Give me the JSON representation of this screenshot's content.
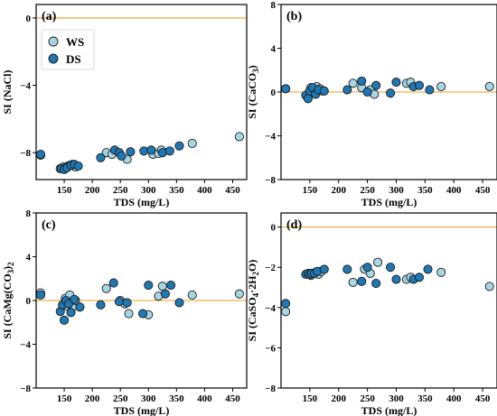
{
  "colors": {
    "WS": "#a9d6e5",
    "DS": "#1f78b4",
    "reference_line": "#f0b24a"
  },
  "chart_data": [
    {
      "type": "scatter",
      "panel": "(a)",
      "xlabel": "TDS (mg/L)",
      "ylabel": "SI (NaCl)",
      "xlim": [
        100,
        475
      ],
      "ylim": [
        -9.6,
        0.8
      ],
      "xticks": [
        150,
        200,
        250,
        300,
        350,
        400,
        450
      ],
      "yticks": [
        0,
        -4,
        -8
      ],
      "reference_line": 0,
      "legend": {
        "position": "top-left",
        "entries": [
          "WS",
          "DS"
        ]
      },
      "series": [
        {
          "name": "WS",
          "points": [
            [
              108,
              -8.15
            ],
            [
              143,
              -8.95
            ],
            [
              148,
              -8.85
            ],
            [
              152,
              -8.9
            ],
            [
              157,
              -8.8
            ],
            [
              160,
              -8.75
            ],
            [
              165,
              -8.7
            ],
            [
              170,
              -8.85
            ],
            [
              225,
              -8.0
            ],
            [
              235,
              -8.1
            ],
            [
              262,
              -8.4
            ],
            [
              308,
              -8.1
            ],
            [
              318,
              -8.05
            ],
            [
              323,
              -7.85
            ],
            [
              378,
              -7.45
            ],
            [
              462,
              -7.05
            ]
          ]
        },
        {
          "name": "DS",
          "points": [
            [
              108,
              -8.1
            ],
            [
              145,
              -8.95
            ],
            [
              150,
              -9.0
            ],
            [
              155,
              -8.9
            ],
            [
              162,
              -8.75
            ],
            [
              168,
              -8.7
            ],
            [
              175,
              -8.8
            ],
            [
              215,
              -8.3
            ],
            [
              240,
              -7.85
            ],
            [
              248,
              -8.0
            ],
            [
              252,
              -8.2
            ],
            [
              268,
              -7.95
            ],
            [
              292,
              -7.9
            ],
            [
              305,
              -7.85
            ],
            [
              325,
              -8.0
            ],
            [
              338,
              -7.9
            ],
            [
              355,
              -7.6
            ]
          ]
        }
      ]
    },
    {
      "type": "scatter",
      "panel": "(b)",
      "xlabel": "TDS (mg/L)",
      "ylabel": "SI (CaCO3)",
      "ylabel_main": "SI (CaCO",
      "ylabel_sub": "3",
      "ylabel_tail": ")",
      "xlim": [
        100,
        475
      ],
      "ylim": [
        -8,
        8
      ],
      "xticks": [
        150,
        200,
        250,
        300,
        350,
        400,
        450
      ],
      "yticks": [
        8,
        4,
        0,
        -4,
        -8
      ],
      "reference_line": 0,
      "series": [
        {
          "name": "WS",
          "points": [
            [
              108,
              0.3
            ],
            [
              148,
              -0.1
            ],
            [
              152,
              0.4
            ],
            [
              155,
              0.2
            ],
            [
              158,
              0.0
            ],
            [
              162,
              0.5
            ],
            [
              168,
              0.3
            ],
            [
              172,
              0.1
            ],
            [
              225,
              0.8
            ],
            [
              240,
              0.4
            ],
            [
              255,
              0.2
            ],
            [
              262,
              -0.2
            ],
            [
              318,
              0.8
            ],
            [
              325,
              0.9
            ],
            [
              378,
              0.5
            ],
            [
              462,
              0.5
            ]
          ]
        },
        {
          "name": "DS",
          "points": [
            [
              108,
              0.3
            ],
            [
              143,
              -0.3
            ],
            [
              147,
              -0.6
            ],
            [
              150,
              0.1
            ],
            [
              155,
              0.4
            ],
            [
              160,
              -0.2
            ],
            [
              165,
              0.2
            ],
            [
              175,
              0.1
            ],
            [
              215,
              0.2
            ],
            [
              240,
              1.0
            ],
            [
              250,
              0.0
            ],
            [
              265,
              0.6
            ],
            [
              290,
              -0.1
            ],
            [
              300,
              0.9
            ],
            [
              330,
              0.5
            ],
            [
              340,
              0.6
            ],
            [
              358,
              0.2
            ]
          ]
        }
      ]
    },
    {
      "type": "scatter",
      "panel": "(c)",
      "xlabel": "TDS (mg/L)",
      "ylabel": "SI (CaMg(CO3)2)",
      "ylabel_main": "SI (CaMg(CO",
      "ylabel_sub": "3",
      "ylabel_tail": ")",
      "ylabel_sub2": "2",
      "xlim": [
        100,
        475
      ],
      "ylim": [
        -8,
        8
      ],
      "xticks": [
        150,
        200,
        250,
        300,
        350,
        400,
        450
      ],
      "yticks": [
        8,
        4,
        0,
        -4,
        -8
      ],
      "reference_line": 0,
      "series": [
        {
          "name": "WS",
          "points": [
            [
              108,
              0.7
            ],
            [
              148,
              -0.4
            ],
            [
              152,
              0.2
            ],
            [
              155,
              -0.5
            ],
            [
              158,
              0.1
            ],
            [
              160,
              0.5
            ],
            [
              165,
              -0.6
            ],
            [
              170,
              0.0
            ],
            [
              225,
              1.1
            ],
            [
              250,
              0.0
            ],
            [
              258,
              -0.3
            ],
            [
              265,
              -1.2
            ],
            [
              300,
              -1.3
            ],
            [
              318,
              0.4
            ],
            [
              325,
              1.3
            ],
            [
              378,
              0.5
            ],
            [
              462,
              0.6
            ]
          ]
        },
        {
          "name": "DS",
          "points": [
            [
              108,
              0.5
            ],
            [
              143,
              -1.0
            ],
            [
              147,
              -0.4
            ],
            [
              150,
              -1.8
            ],
            [
              153,
              0.0
            ],
            [
              158,
              -0.3
            ],
            [
              162,
              -1.1
            ],
            [
              168,
              0.1
            ],
            [
              178,
              -0.6
            ],
            [
              215,
              -0.4
            ],
            [
              238,
              1.6
            ],
            [
              248,
              -0.1
            ],
            [
              262,
              -0.2
            ],
            [
              290,
              -1.2
            ],
            [
              300,
              1.4
            ],
            [
              330,
              0.6
            ],
            [
              340,
              1.4
            ],
            [
              355,
              -0.2
            ]
          ]
        }
      ]
    },
    {
      "type": "scatter",
      "panel": "(d)",
      "xlabel": "TDS (mg/L)",
      "ylabel": "SI (CaSO4·2H2O)",
      "ylabel_main": "SI (CaSO",
      "ylabel_sub": "4",
      "ylabel_tail": "·2H",
      "ylabel_sub2": "2",
      "ylabel_end": "O)",
      "xlim": [
        100,
        475
      ],
      "ylim": [
        -8,
        0.7
      ],
      "xticks": [
        150,
        200,
        250,
        300,
        350,
        400,
        450
      ],
      "yticks": [
        0,
        -2,
        -4,
        -6,
        -8
      ],
      "reference_line": 0,
      "series": [
        {
          "name": "WS",
          "points": [
            [
              108,
              -4.2
            ],
            [
              148,
              -2.3
            ],
            [
              152,
              -2.4
            ],
            [
              155,
              -2.3
            ],
            [
              160,
              -2.25
            ],
            [
              165,
              -2.35
            ],
            [
              170,
              -2.2
            ],
            [
              225,
              -2.75
            ],
            [
              245,
              -2.1
            ],
            [
              255,
              -2.3
            ],
            [
              268,
              -1.75
            ],
            [
              318,
              -2.6
            ],
            [
              325,
              -2.5
            ],
            [
              378,
              -2.25
            ],
            [
              462,
              -2.95
            ]
          ]
        },
        {
          "name": "DS",
          "points": [
            [
              108,
              -3.8
            ],
            [
              143,
              -2.35
            ],
            [
              147,
              -2.3
            ],
            [
              150,
              -2.35
            ],
            [
              153,
              -2.3
            ],
            [
              158,
              -2.3
            ],
            [
              163,
              -2.2
            ],
            [
              175,
              -2.1
            ],
            [
              215,
              -2.1
            ],
            [
              240,
              -2.7
            ],
            [
              250,
              -2.0
            ],
            [
              265,
              -2.8
            ],
            [
              290,
              -2.0
            ],
            [
              300,
              -2.6
            ],
            [
              330,
              -2.6
            ],
            [
              340,
              -2.5
            ],
            [
              355,
              -2.1
            ]
          ]
        }
      ]
    }
  ]
}
